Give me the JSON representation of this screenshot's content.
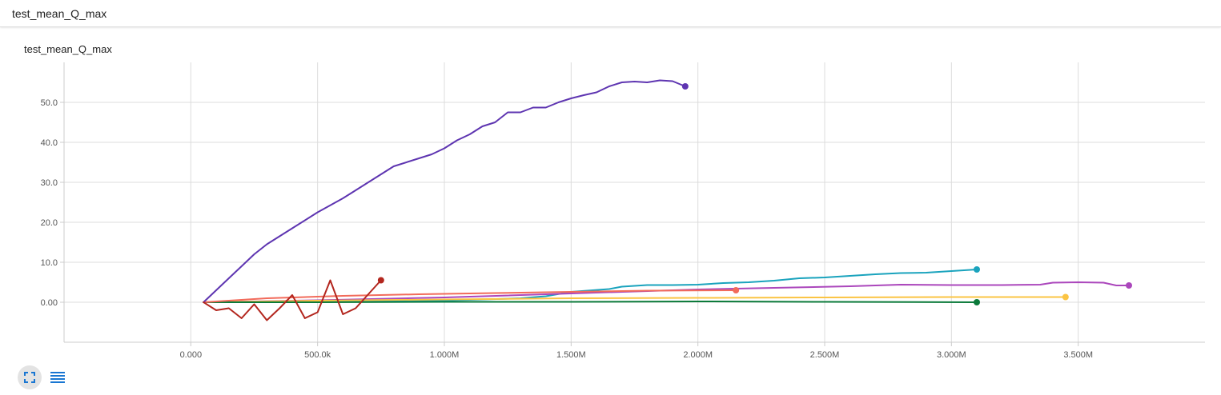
{
  "header": {
    "title": "test_mean_Q_max"
  },
  "chart_data": {
    "type": "line",
    "title": "test_mean_Q_max",
    "xlabel": "",
    "ylabel": "",
    "xlim": [
      -500000,
      4000000
    ],
    "ylim": [
      -10,
      60
    ],
    "x_ticks": [
      0,
      500000,
      1000000,
      1500000,
      2000000,
      2500000,
      3000000,
      3500000
    ],
    "x_tick_labels": [
      "0.000",
      "500.0k",
      "1.000M",
      "1.500M",
      "2.000M",
      "2.500M",
      "3.000M",
      "3.500M"
    ],
    "y_ticks": [
      0,
      10,
      20,
      30,
      40,
      50
    ],
    "y_tick_labels": [
      "0.00",
      "10.0",
      "20.0",
      "30.0",
      "40.0",
      "50.0"
    ],
    "grid": true,
    "legend": "none",
    "series": [
      {
        "color": "#1aa3bd",
        "x": [
          50000,
          300000,
          600000,
          900000,
          1100000,
          1300000,
          1400000,
          1500000,
          1650000,
          1700000,
          1800000,
          1900000,
          2000000,
          2100000,
          2200000,
          2300000,
          2400000,
          2500000,
          2600000,
          2700000,
          2800000,
          2900000,
          3000000,
          3100000
        ],
        "y": [
          0.0,
          0.1,
          0.2,
          0.3,
          0.6,
          1.0,
          1.5,
          2.6,
          3.3,
          3.9,
          4.3,
          4.3,
          4.4,
          4.8,
          5.0,
          5.4,
          6.0,
          6.2,
          6.6,
          7.0,
          7.3,
          7.4,
          7.8,
          8.2
        ]
      },
      {
        "color": "#ab47bc",
        "x": [
          50000,
          500000,
          1000000,
          1500000,
          2000000,
          2300000,
          2600000,
          2800000,
          3000000,
          3200000,
          3350000,
          3400000,
          3500000,
          3600000,
          3650000,
          3700000
        ],
        "y": [
          0.0,
          0.5,
          1.2,
          2.2,
          3.2,
          3.6,
          4.0,
          4.4,
          4.3,
          4.3,
          4.4,
          4.9,
          5.0,
          4.9,
          4.2,
          4.2
        ]
      },
      {
        "color": "#fbc443",
        "x": [
          50000,
          500000,
          1000000,
          1500000,
          2000000,
          2500000,
          3000000,
          3450000
        ],
        "y": [
          0.0,
          0.4,
          0.7,
          1.0,
          1.1,
          1.2,
          1.3,
          1.3
        ]
      },
      {
        "color": "#0b7a3a",
        "x": [
          50000,
          500000,
          1000000,
          1500000,
          2000000,
          2500000,
          3100000
        ],
        "y": [
          0.0,
          0.0,
          0.1,
          0.1,
          0.2,
          0.1,
          0.0
        ]
      },
      {
        "color": "#f26b5b",
        "x": [
          50000,
          300000,
          600000,
          900000,
          1200000,
          1500000,
          1800000,
          2150000
        ],
        "y": [
          0.0,
          1.0,
          1.6,
          2.0,
          2.3,
          2.6,
          2.9,
          3.0
        ]
      },
      {
        "color": "#5e35b1",
        "x": [
          50000,
          100000,
          150000,
          200000,
          250000,
          300000,
          400000,
          500000,
          600000,
          650000,
          700000,
          800000,
          900000,
          950000,
          1000000,
          1050000,
          1100000,
          1150000,
          1200000,
          1250000,
          1300000,
          1350000,
          1400000,
          1450000,
          1500000,
          1550000,
          1600000,
          1650000,
          1700000,
          1750000,
          1800000,
          1850000,
          1900000,
          1950000
        ],
        "y": [
          0.0,
          3.0,
          6.0,
          9.0,
          12.0,
          14.5,
          18.5,
          22.5,
          26.0,
          28.0,
          30.0,
          34.0,
          36.0,
          37.0,
          38.5,
          40.5,
          42.0,
          44.0,
          45.0,
          47.5,
          47.5,
          48.7,
          48.7,
          50.0,
          51.0,
          51.8,
          52.5,
          54.0,
          55.0,
          55.2,
          55.0,
          55.5,
          55.3,
          54.0
        ]
      },
      {
        "color": "#b3261e",
        "x": [
          50000,
          100000,
          150000,
          200000,
          250000,
          300000,
          350000,
          400000,
          450000,
          500000,
          550000,
          600000,
          650000,
          700000,
          750000
        ],
        "y": [
          0.0,
          -2.0,
          -1.5,
          -4.0,
          -0.5,
          -4.5,
          -1.5,
          1.8,
          -4.0,
          -2.5,
          5.5,
          -3.0,
          -1.5,
          2.0,
          5.5
        ]
      }
    ]
  },
  "controls": {
    "expand_icon": "expand-icon",
    "data_icon": "list-icon"
  }
}
